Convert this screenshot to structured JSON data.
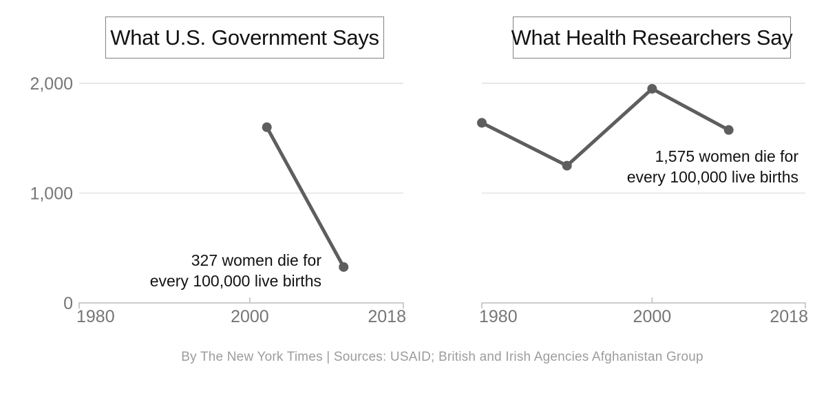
{
  "colors": {
    "background": "#ffffff",
    "line": "#5e5e5e",
    "grid": "#e8e8e8",
    "axis": "#cccccc",
    "tick_label": "#767676",
    "annotation": "#121212",
    "title": "#121212",
    "title_border": "#808080",
    "footer": "#9c9c9c"
  },
  "footer": {
    "credit": "By The New York Times | Sources: USAID; British and Irish Agencies Afghanistan Group"
  },
  "chart_data": [
    {
      "type": "line",
      "title": "What U.S. Government Says",
      "x": [
        2002,
        2011
      ],
      "values": [
        1600,
        327
      ],
      "xlim": [
        1980,
        2018
      ],
      "ylim": [
        0,
        2000
      ],
      "xticks": [
        {
          "value": 1980,
          "label": "1980"
        },
        {
          "value": 2000,
          "label": "2000"
        },
        {
          "value": 2018,
          "label": "2018"
        }
      ],
      "yticks": [
        {
          "value": 0,
          "label": "0"
        },
        {
          "value": 1000,
          "label": "1,000"
        },
        {
          "value": 2000,
          "label": "2,000"
        }
      ],
      "show_y_labels": true,
      "grid": true,
      "legend": "none",
      "annotation": {
        "line1": "327 women die for",
        "line2": "every 100,000 live births"
      }
    },
    {
      "type": "line",
      "title": "What Health Researchers Say",
      "x": [
        1980,
        1990,
        2000,
        2009
      ],
      "values": [
        1640,
        1250,
        1950,
        1575
      ],
      "xlim": [
        1980,
        2018
      ],
      "ylim": [
        0,
        2000
      ],
      "xticks": [
        {
          "value": 1980,
          "label": "1980"
        },
        {
          "value": 2000,
          "label": "2000"
        },
        {
          "value": 2018,
          "label": "2018"
        }
      ],
      "yticks": [
        {
          "value": 0,
          "label": "0"
        },
        {
          "value": 1000,
          "label": "1,000"
        },
        {
          "value": 2000,
          "label": "2,000"
        }
      ],
      "show_y_labels": false,
      "grid": true,
      "legend": "none",
      "annotation": {
        "line1": "1,575 women die for",
        "line2": "every 100,000 live births"
      }
    }
  ]
}
